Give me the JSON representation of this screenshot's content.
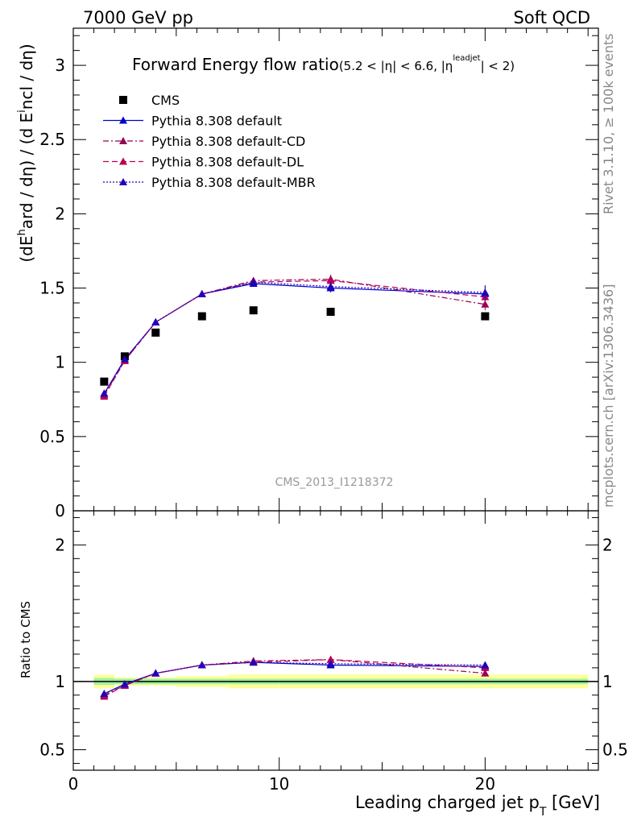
{
  "header": {
    "left": "7000 GeV pp",
    "right": "Soft QCD"
  },
  "side_labels": {
    "rivet": "Rivet 3.1.10, ≥ 100k events",
    "mcplots": "mcplots.cern.ch [arXiv:1306.3436]"
  },
  "watermark": "CMS_2013_I1218372",
  "chart_data": {
    "type": "line",
    "title": "Forward Energy flow ratio",
    "title_cut": "(5.2 < |η| < 6.6, |η^leadjet| < 2)",
    "title_cut_parts": [
      "(5.2 < |η| < 6.6, |η",
      "leadjet",
      "| < 2)"
    ],
    "ylabel": "(dE^hard / dη) / (d E^incl / dη)",
    "ylabel_parts": [
      "(dE",
      "h",
      "ard / dη) / (d E",
      "i",
      "ncl / dη)"
    ],
    "xlabel": "Leading charged jet p_T [GeV]",
    "xlabel_parts": [
      "Leading charged jet p",
      "T",
      " [GeV]"
    ],
    "ratio_ylabel": "Ratio to CMS",
    "xlim": [
      0,
      25.5
    ],
    "ylim": [
      0,
      3.25
    ],
    "ratio_ylim": [
      0.35,
      2.25
    ],
    "x_ticks": [
      0,
      10,
      20
    ],
    "x_tick_labels": [
      "0",
      "10",
      "20"
    ],
    "y_ticks": [
      0,
      0.5,
      1,
      1.5,
      2,
      2.5,
      3
    ],
    "y_tick_labels": [
      "0",
      "0.5",
      "1",
      "1.5",
      "2",
      "2.5",
      "3"
    ],
    "ratio_y_ticks": [
      0.5,
      1,
      2
    ],
    "ratio_y_tick_labels": [
      "0.5",
      "1",
      "2"
    ],
    "legend_position": "top-left",
    "x": [
      1.5,
      2.5,
      4.0,
      6.25,
      8.75,
      12.5,
      20.0
    ],
    "series": [
      {
        "name": "CMS",
        "style": "data",
        "color": "#000000",
        "values": [
          0.87,
          1.04,
          1.2,
          1.31,
          1.35,
          1.34,
          1.31
        ]
      },
      {
        "name": "Pythia 8.308 default",
        "style": "solid",
        "color": "#0000cc",
        "values": [
          0.79,
          1.02,
          1.27,
          1.46,
          1.53,
          1.5,
          1.46
        ],
        "errors": [
          0.01,
          0.01,
          0.01,
          0.01,
          0.02,
          0.03,
          0.05
        ]
      },
      {
        "name": "Pythia 8.308 default-CD",
        "style": "dashdot",
        "color": "#990055",
        "values": [
          0.78,
          1.01,
          1.27,
          1.46,
          1.55,
          1.56,
          1.39
        ],
        "errors": [
          0.01,
          0.01,
          0.01,
          0.01,
          0.02,
          0.03,
          0.04
        ]
      },
      {
        "name": "Pythia 8.308 default-DL",
        "style": "dashed",
        "color": "#bb0055",
        "values": [
          0.77,
          1.01,
          1.27,
          1.46,
          1.54,
          1.55,
          1.44
        ],
        "errors": [
          0.01,
          0.01,
          0.01,
          0.01,
          0.02,
          0.03,
          0.04
        ]
      },
      {
        "name": "Pythia 8.308 default-MBR",
        "style": "dotted",
        "color": "#2200bb",
        "values": [
          0.79,
          1.02,
          1.27,
          1.46,
          1.54,
          1.51,
          1.47
        ],
        "errors": [
          0.01,
          0.01,
          0.01,
          0.01,
          0.02,
          0.03,
          0.05
        ]
      }
    ],
    "ratio_series": [
      {
        "name": "Pythia 8.308 default",
        "values": [
          0.91,
          0.98,
          1.06,
          1.12,
          1.14,
          1.12,
          1.11
        ]
      },
      {
        "name": "Pythia 8.308 default-CD",
        "values": [
          0.9,
          0.97,
          1.06,
          1.12,
          1.15,
          1.16,
          1.06
        ]
      },
      {
        "name": "Pythia 8.308 default-DL",
        "values": [
          0.89,
          0.97,
          1.06,
          1.12,
          1.14,
          1.16,
          1.1
        ]
      },
      {
        "name": "Pythia 8.308 default-MBR",
        "values": [
          0.91,
          0.98,
          1.06,
          1.12,
          1.14,
          1.13,
          1.12
        ]
      }
    ],
    "data_bands": {
      "x_edges": [
        1.0,
        2.0,
        3.0,
        5.0,
        7.5,
        10.0,
        15.0,
        25.0
      ],
      "stat_half_width": [
        0.025,
        0.02,
        0.02,
        0.02,
        0.02,
        0.02,
        0.02
      ],
      "total_half_width": [
        0.05,
        0.03,
        0.03,
        0.04,
        0.05,
        0.05,
        0.05
      ],
      "stat_color": "#a0f0a0",
      "total_color": "#ffff99"
    }
  }
}
